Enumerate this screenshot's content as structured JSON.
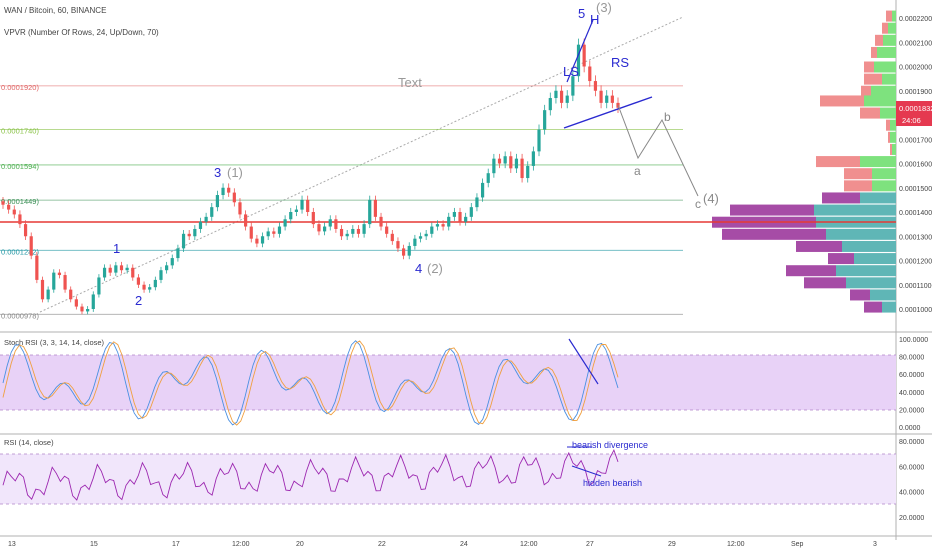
{
  "header": {
    "symbol_line": "WAN / Bitcoin, 60, BINANCE",
    "vpvr_line": "VPVR (Number Of Rows, 24, Up/Down, 70)"
  },
  "price_pane": {
    "y_axis_ticks": [
      "0.00022000",
      "0.00021000",
      "0.00020000",
      "0.00019000",
      "0.00018000",
      "0.00017000",
      "0.00016000",
      "0.00015000",
      "0.00014000",
      "0.00013000",
      "0.00012000",
      "0.00011000",
      "0.00010000"
    ],
    "price_badge": "0.0001832",
    "countdown": "24:06",
    "fib_levels": [
      {
        "label": "0.0002410)",
        "value": 0.000241,
        "color": "#888888"
      },
      {
        "label": "0.0001920)",
        "value": 0.000192,
        "color": "#e06666"
      },
      {
        "label": "0.0001740)",
        "value": 0.000174,
        "color": "#8bc34a"
      },
      {
        "label": "0.0001594)",
        "value": 0.0001594,
        "color": "#4caf50"
      },
      {
        "label": "0.0001449)",
        "value": 0.0001449,
        "color": "#3a8f55"
      },
      {
        "label": "0.0001242)",
        "value": 0.0001242,
        "color": "#2196a3"
      },
      {
        "label": "0.0000978)",
        "value": 9.78e-05,
        "color": "#888888"
      }
    ],
    "annotations": {
      "text_label": "Text",
      "wave_1": "1",
      "wave_2": "2",
      "wave_3": "3",
      "wave_4": "4",
      "wave_5": "5",
      "wave_3_paren": "(1)",
      "wave_4_paren": "(2)",
      "wave_5_paren": "(3)",
      "head": "H",
      "left_shoulder": "LS",
      "right_shoulder": "RS",
      "corr_a": "a",
      "corr_b": "b",
      "corr_c": "c",
      "corr_c_paren": "(4)"
    },
    "colors": {
      "up": "#26a69a",
      "down": "#ef5350",
      "volume_up": "#7ee27e",
      "volume_down": "#f08f8f",
      "volume_buy": "#5fb6b6",
      "volume_sell": "#a64ca6"
    }
  },
  "stoch_pane": {
    "title": "Stoch RSI (3, 3, 14, 14, close)",
    "ticks": [
      "100.0000",
      "80.0000",
      "60.0000",
      "40.0000",
      "20.0000",
      "0.0000"
    ]
  },
  "rsi_pane": {
    "title": "RSI (14, close)",
    "ticks": [
      "80.0000",
      "60.0000",
      "40.0000",
      "20.0000"
    ],
    "bearish_label": "bearish divergence",
    "hidden_label": "hidden bearish"
  },
  "x_axis_ticks": [
    "13",
    "15",
    "17",
    "12:00",
    "20",
    "22",
    "24",
    "12:00",
    "27",
    "29",
    "12:00",
    "Sep",
    "3"
  ],
  "chart_data": {
    "type": "line",
    "title": "WAN / Bitcoin, 60, BINANCE",
    "xlabel": "",
    "ylabel": "",
    "ylim": [
      9.7e-05,
      0.000224
    ],
    "series": [
      {
        "values": [
          0.000143,
          0.000141,
          0.000139,
          0.000135,
          0.00013,
          0.000122,
          0.000112,
          0.000104,
          0.000108,
          0.000115,
          0.000114,
          0.000108,
          0.000104,
          0.000101,
          9.9e-05,
          0.0001,
          0.000106,
          0.000113,
          0.000117,
          0.000115,
          0.000118,
          0.000116,
          0.000117,
          0.000113,
          0.00011,
          0.000108,
          0.000109,
          0.000112,
          0.000116,
          0.000118,
          0.000121,
          0.000125,
          0.000131,
          0.00013,
          0.000133,
          0.000136,
          0.000138,
          0.000142,
          0.000147,
          0.00015,
          0.000148,
          0.000144,
          0.000139,
          0.000134,
          0.000129,
          0.000127,
          0.00013,
          0.000132,
          0.000131,
          0.000134,
          0.000137,
          0.00014,
          0.000141,
          0.000145,
          0.00014,
          0.000135,
          0.000132,
          0.000134,
          0.000137,
          0.000133,
          0.00013,
          0.000131,
          0.000133,
          0.000131,
          0.000135,
          0.000145,
          0.000138,
          0.000134,
          0.000131,
          0.000128,
          0.000125,
          0.000122,
          0.000126,
          0.000129,
          0.00013,
          0.000131,
          0.000134,
          0.000135,
          0.000134,
          0.000138,
          0.00014,
          0.000136,
          0.000138,
          0.000142,
          0.000146,
          0.000152,
          0.000156,
          0.000162,
          0.00016,
          0.000163,
          0.000158,
          0.000162,
          0.000154,
          0.000159,
          0.000165,
          0.000174,
          0.000182,
          0.000187,
          0.00019,
          0.000185,
          0.000188,
          0.000196,
          0.000209,
          0.0002,
          0.000194,
          0.00019,
          0.000185,
          0.000188,
          0.000185,
          0.000183
        ]
      }
    ]
  }
}
